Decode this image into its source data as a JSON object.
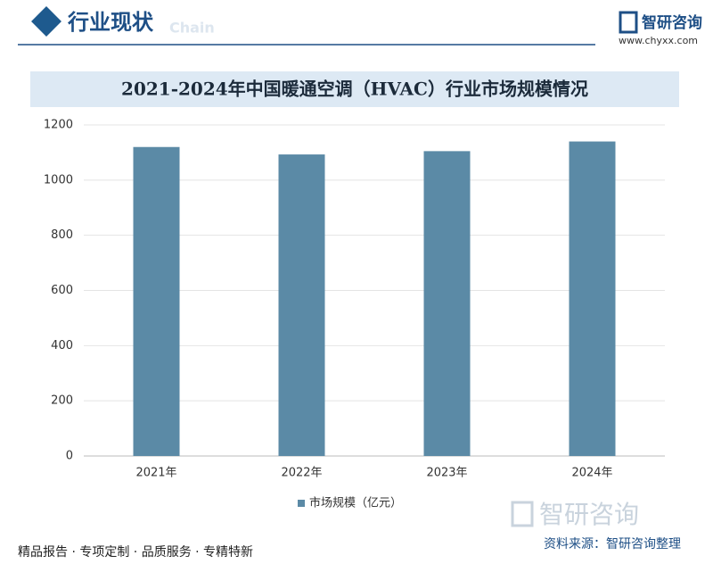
{
  "header": {
    "section": "行业现状",
    "faint": "Chain",
    "brand": "智研咨询",
    "url": "www.chyxx.com"
  },
  "chart_data": {
    "type": "bar",
    "title": "2021-2024年中国暖通空调（HVAC）行业市场规模情况",
    "categories": [
      "2021年",
      "2022年",
      "2023年",
      "2024年"
    ],
    "series": [
      {
        "name": "市场规模（亿元）",
        "color": "#5b8aa6",
        "values": [
          1120,
          1093,
          1105,
          1140
        ]
      }
    ],
    "ylim": [
      0,
      1200
    ],
    "yticks": [
      0,
      200,
      400,
      600,
      800,
      1000,
      1200
    ],
    "grid": true,
    "legend": "bottom"
  },
  "footer": {
    "tagline": "精品报告 · 专项定制 · 品质服务 · 专精特新",
    "brand": "智研咨询",
    "source": "资料来源：智研咨询整理"
  }
}
